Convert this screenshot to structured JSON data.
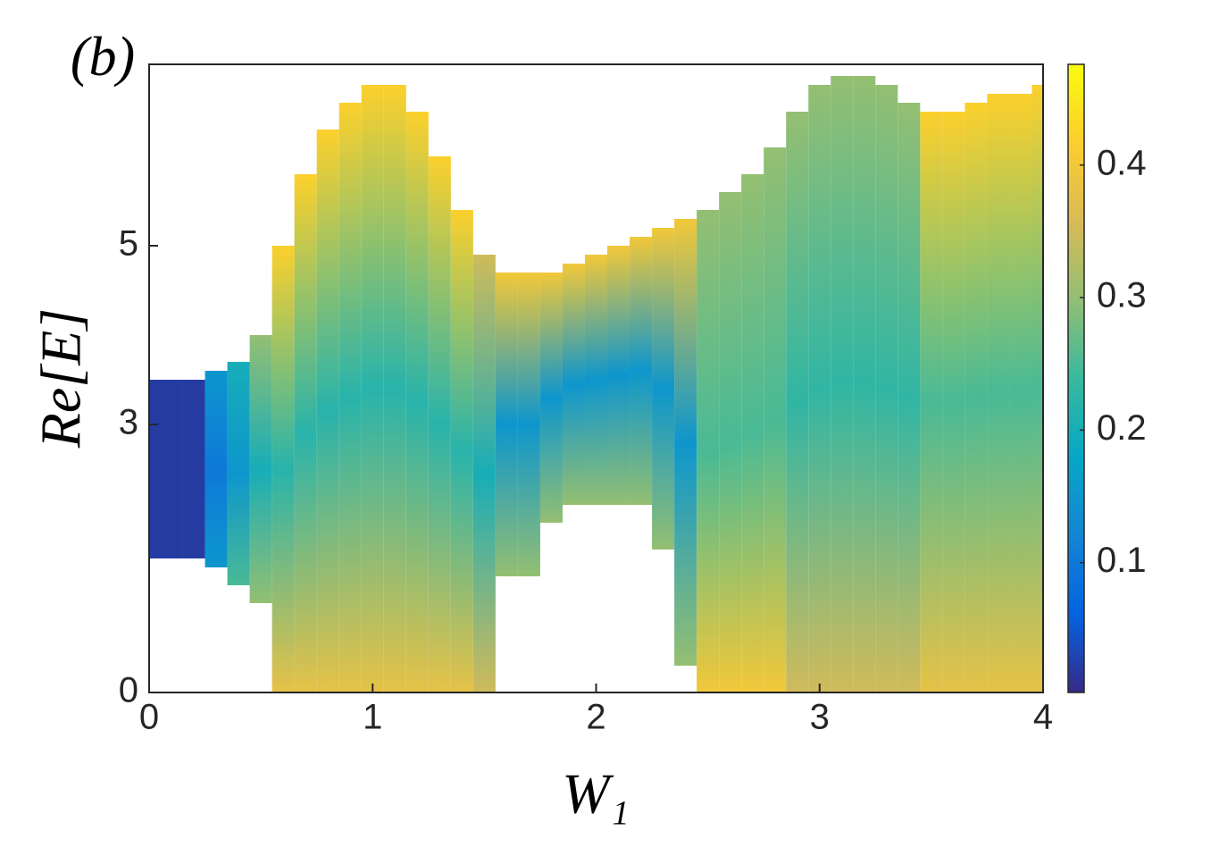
{
  "chart_data": {
    "type": "band",
    "title": "(b)",
    "x_label": "W₁",
    "y_label": "Re[E]",
    "x": [
      0,
      0.1,
      0.2,
      0.3,
      0.4,
      0.5,
      0.6,
      0.7,
      0.8,
      0.9,
      1.0,
      1.1,
      1.2,
      1.3,
      1.4,
      1.5,
      1.6,
      1.7,
      1.8,
      1.9,
      2.0,
      2.1,
      2.2,
      2.3,
      2.4,
      2.5,
      2.6,
      2.7,
      2.8,
      2.9,
      3.0,
      3.1,
      3.2,
      3.3,
      3.4,
      3.5,
      3.6,
      3.7,
      3.8,
      3.9,
      4.0
    ],
    "ymin": [
      1.5,
      1.5,
      1.5,
      1.4,
      1.2,
      1.0,
      0,
      0,
      0,
      0,
      0,
      0,
      0,
      0,
      0,
      0,
      1.3,
      1.3,
      1.9,
      2.1,
      2.1,
      2.1,
      2.1,
      1.6,
      0.3,
      0,
      0,
      0,
      0,
      0,
      0,
      0,
      0,
      0,
      0,
      0,
      0,
      0,
      0,
      0,
      0
    ],
    "ymax": [
      3.5,
      3.5,
      3.5,
      3.6,
      3.7,
      4.0,
      5.0,
      5.8,
      6.3,
      6.6,
      6.8,
      6.8,
      6.5,
      6.0,
      5.4,
      4.9,
      4.7,
      4.7,
      4.7,
      4.8,
      4.9,
      5.0,
      5.1,
      5.2,
      5.3,
      5.4,
      5.6,
      5.8,
      6.1,
      6.5,
      6.8,
      6.9,
      6.9,
      6.8,
      6.6,
      6.5,
      6.5,
      6.6,
      6.7,
      6.7,
      6.8
    ],
    "c_top": [
      0.02,
      0.02,
      0.02,
      0.15,
      0.2,
      0.3,
      0.42,
      0.42,
      0.42,
      0.42,
      0.42,
      0.42,
      0.42,
      0.42,
      0.42,
      0.35,
      0.4,
      0.4,
      0.4,
      0.4,
      0.4,
      0.4,
      0.4,
      0.4,
      0.4,
      0.3,
      0.3,
      0.3,
      0.3,
      0.3,
      0.3,
      0.3,
      0.3,
      0.3,
      0.3,
      0.42,
      0.42,
      0.42,
      0.42,
      0.42,
      0.42
    ],
    "c_mid": [
      0.02,
      0.02,
      0.02,
      0.1,
      0.15,
      0.2,
      0.22,
      0.22,
      0.22,
      0.22,
      0.22,
      0.22,
      0.22,
      0.22,
      0.22,
      0.2,
      0.15,
      0.15,
      0.15,
      0.15,
      0.15,
      0.15,
      0.15,
      0.15,
      0.15,
      0.25,
      0.25,
      0.25,
      0.25,
      0.23,
      0.23,
      0.23,
      0.23,
      0.23,
      0.23,
      0.25,
      0.25,
      0.25,
      0.25,
      0.25,
      0.25
    ],
    "c_bottom": [
      0.02,
      0.02,
      0.02,
      0.15,
      0.25,
      0.3,
      0.38,
      0.38,
      0.38,
      0.38,
      0.38,
      0.38,
      0.38,
      0.38,
      0.38,
      0.35,
      0.3,
      0.3,
      0.3,
      0.3,
      0.3,
      0.3,
      0.3,
      0.3,
      0.3,
      0.4,
      0.4,
      0.4,
      0.4,
      0.35,
      0.35,
      0.35,
      0.35,
      0.35,
      0.35,
      0.38,
      0.38,
      0.38,
      0.38,
      0.38,
      0.38
    ],
    "xlim": [
      0,
      4
    ],
    "ylim": [
      0,
      7.03
    ],
    "xticks": [
      0,
      1,
      2,
      3,
      4
    ],
    "yticks": [
      0,
      3,
      5
    ],
    "clim": [
      0.002,
      0.476
    ],
    "cticks": [
      0.1,
      0.2,
      0.3,
      0.4
    ],
    "colormap": [
      "#352a87",
      "#0363e1",
      "#1485d4",
      "#06a7c6",
      "#38b99e",
      "#92bf73",
      "#d9ba56",
      "#fcce2e",
      "#f9fb0e"
    ]
  }
}
